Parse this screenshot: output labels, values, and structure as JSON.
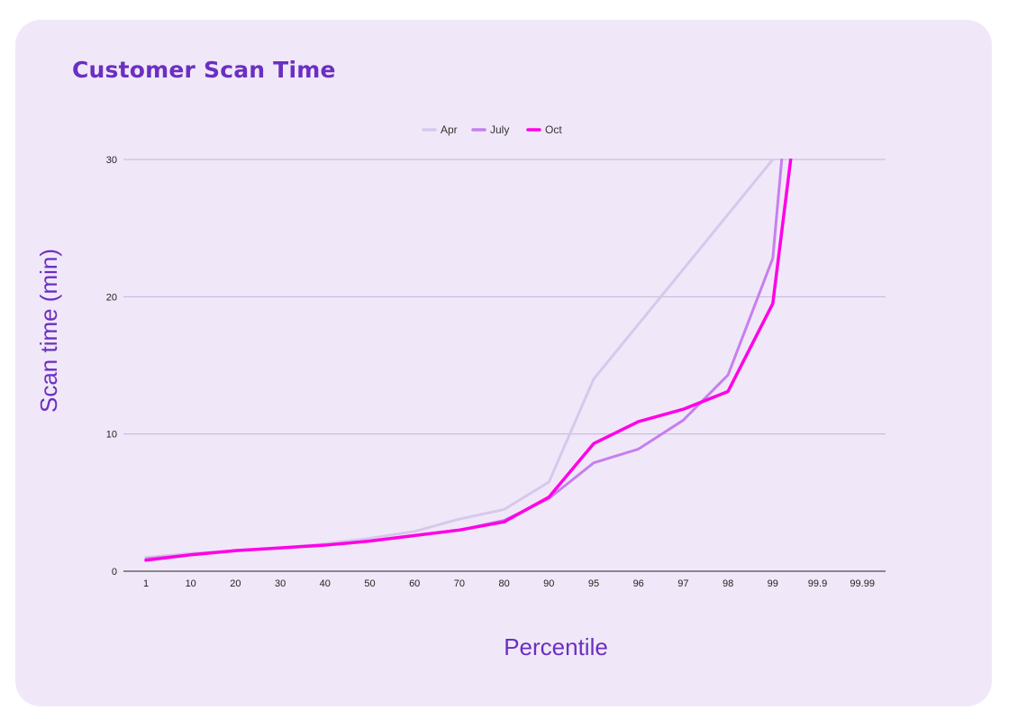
{
  "chart_data": {
    "type": "line",
    "title": "Customer Scan Time",
    "xlabel": "Percentile",
    "ylabel": "Scan time (min)",
    "categories": [
      "1",
      "10",
      "20",
      "30",
      "40",
      "50",
      "60",
      "70",
      "80",
      "90",
      "95",
      "96",
      "97",
      "98",
      "99",
      "99.9",
      "99.99"
    ],
    "ylim": [
      0,
      30
    ],
    "yticks": [
      "0",
      "10",
      "20",
      "30"
    ],
    "grid": true,
    "legend_position": "top",
    "series": [
      {
        "name": "Apr",
        "color": "#d8c8ec",
        "values": [
          1.0,
          1.3,
          1.5,
          1.7,
          2.0,
          2.4,
          2.9,
          3.8,
          4.5,
          6.5,
          14.0,
          18.0,
          22.0,
          26.0,
          30.0,
          null,
          null
        ]
      },
      {
        "name": "July",
        "color": "#c77fee",
        "values": [
          0.9,
          1.2,
          1.5,
          1.7,
          1.9,
          2.2,
          2.6,
          3.0,
          3.7,
          5.3,
          7.9,
          8.9,
          11.0,
          14.3,
          22.8,
          null,
          null
        ]
      },
      {
        "name": "Oct",
        "color": "#ff00e6",
        "values": [
          0.8,
          1.2,
          1.5,
          1.7,
          1.9,
          2.2,
          2.6,
          3.0,
          3.6,
          5.4,
          9.3,
          10.9,
          11.8,
          13.1,
          19.5,
          null,
          null
        ]
      }
    ],
    "continuations": [
      {
        "series": "July",
        "from": [
          14,
          22.8
        ],
        "to": [
          14.2,
          30
        ]
      },
      {
        "series": "Oct",
        "from": [
          14,
          19.5
        ],
        "to": [
          14.4,
          30
        ]
      }
    ]
  }
}
